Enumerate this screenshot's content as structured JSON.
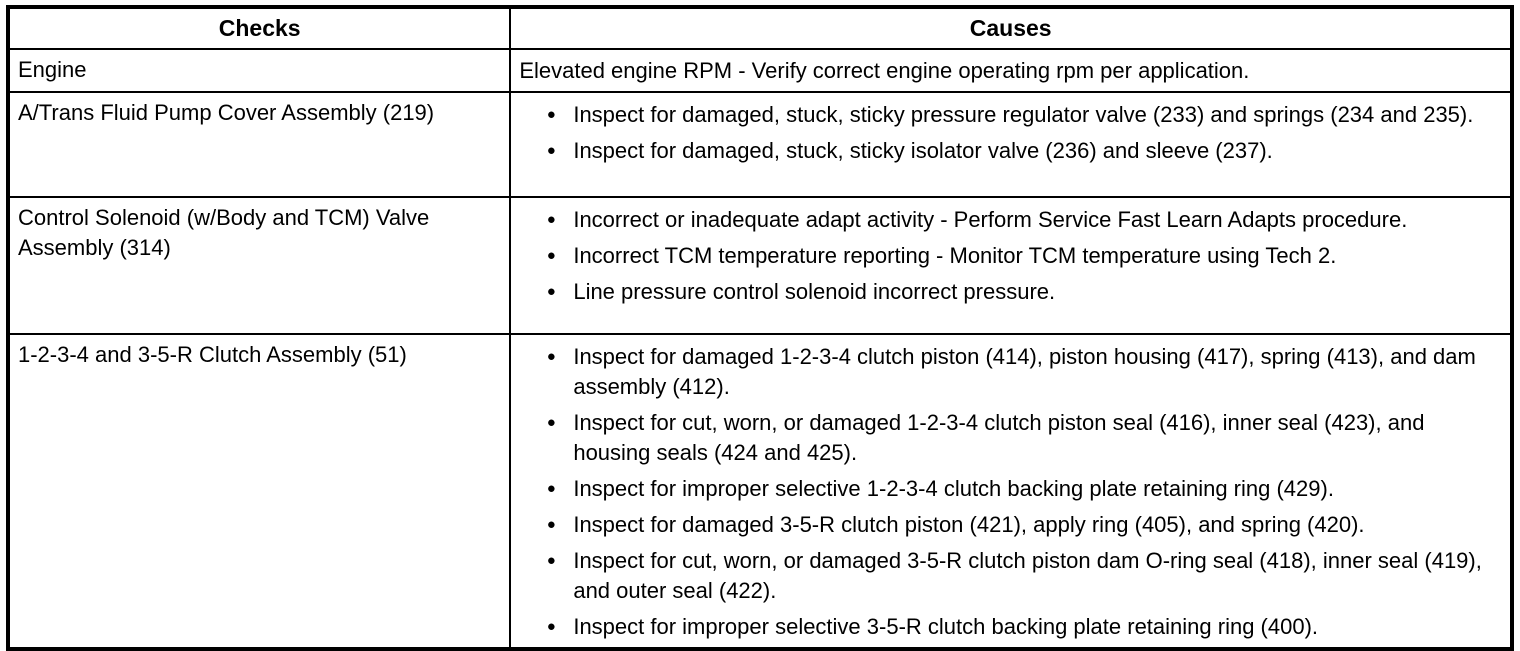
{
  "icons": {
    "bullet": "●"
  },
  "table": {
    "headers": [
      "Checks",
      "Causes"
    ],
    "rows": [
      {
        "check": "Engine",
        "cause_text": "Elevated engine RPM - Verify correct engine operating rpm per application."
      },
      {
        "check": "A/Trans Fluid Pump Cover Assembly (219)",
        "causes": [
          "Inspect for damaged, stuck, sticky pressure regulator valve (233) and springs (234 and 235).",
          "Inspect for damaged, stuck, sticky isolator valve (236) and sleeve (237)."
        ]
      },
      {
        "check": "Control Solenoid (w/Body and TCM) Valve Assembly (314)",
        "causes": [
          "Incorrect or inadequate adapt activity - Perform Service Fast Learn Adapts procedure.",
          "Incorrect TCM temperature reporting - Monitor TCM temperature using Tech 2.",
          "Line pressure control solenoid incorrect pressure."
        ]
      },
      {
        "check": "1-2-3-4 and 3-5-R Clutch Assembly (51)",
        "causes": [
          "Inspect for damaged 1-2-3-4 clutch piston (414), piston housing (417), spring (413), and dam assembly (412).",
          "Inspect for cut, worn, or damaged 1-2-3-4 clutch piston seal (416), inner seal (423), and housing seals (424 and 425).",
          "Inspect for improper selective 1-2-3-4 clutch backing plate retaining ring (429).",
          "Inspect for damaged 3-5-R clutch piston (421), apply ring (405), and spring (420).",
          "Inspect for cut, worn, or damaged 3-5-R clutch piston dam O-ring seal (418), inner seal (419), and outer seal (422).",
          "Inspect for improper selective 3-5-R clutch backing plate retaining ring (400)."
        ]
      }
    ]
  }
}
